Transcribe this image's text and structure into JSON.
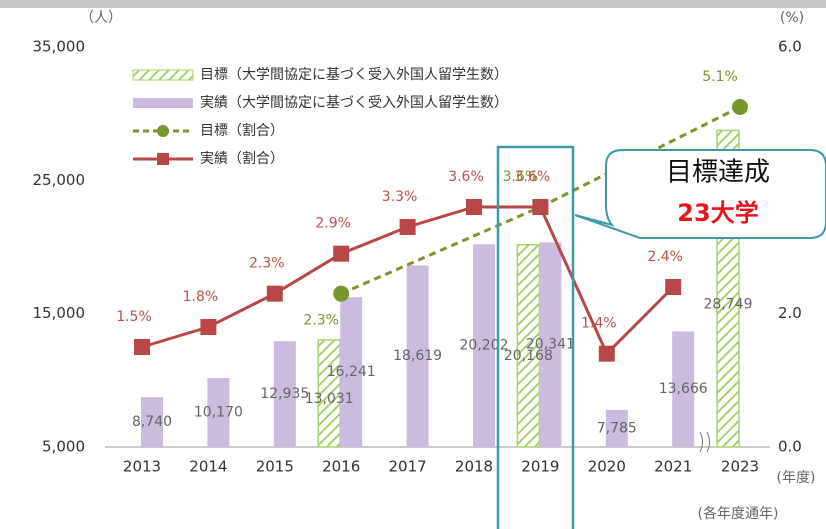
{
  "chart_data": {
    "type": "bar",
    "categories": [
      "2013",
      "2014",
      "2015",
      "2016",
      "2017",
      "2018",
      "2019",
      "2020",
      "2021",
      "2023"
    ],
    "series": [
      {
        "name": "目標（大学間協定に基づく受入外国人留学生数）",
        "type": "bar",
        "pattern": "hatch",
        "color": "#a9d06e",
        "values": [
          null,
          null,
          null,
          13031,
          null,
          null,
          20168,
          null,
          null,
          28749
        ],
        "value_labels": [
          null,
          null,
          null,
          "13,031",
          null,
          null,
          "20,168",
          null,
          null,
          "28,749"
        ]
      },
      {
        "name": "実績（大学間協定に基づく受入外国人留学生数）",
        "type": "bar",
        "color": "#cbbbdf",
        "values": [
          8740,
          10170,
          12935,
          16241,
          18619,
          20202,
          20341,
          7785,
          13666,
          null
        ],
        "value_labels": [
          "8,740",
          "10,170",
          "12,935",
          "16,241",
          "18,619",
          "20,202",
          "20,341",
          "7,785",
          "13,666",
          null
        ]
      },
      {
        "name": "目標（割合）",
        "type": "line",
        "dashed": true,
        "axis": "y2",
        "color": "#78962e",
        "values": [
          null,
          null,
          null,
          2.3,
          null,
          null,
          3.6,
          null,
          null,
          5.1
        ],
        "value_labels": [
          null,
          null,
          null,
          "2.3%",
          null,
          null,
          "3.6%",
          null,
          null,
          "5.1%"
        ]
      },
      {
        "name": "実績（割合）",
        "type": "line",
        "axis": "y2",
        "color": "#b94747",
        "values": [
          1.5,
          1.8,
          2.3,
          2.9,
          3.3,
          3.6,
          3.6,
          1.4,
          2.4,
          null
        ],
        "value_labels": [
          "1.5%",
          "1.8%",
          "2.3%",
          "2.9%",
          "3.3%",
          "3.6%",
          "3.6%",
          "1.4%",
          "2.4%",
          null
        ]
      }
    ],
    "ylim": [
      5000,
      35000
    ],
    "yticks": [
      {
        "value": 5000,
        "label": "5,000"
      },
      {
        "value": 15000,
        "label": "15,000"
      },
      {
        "value": 25000,
        "label": "25,000"
      },
      {
        "value": 35000,
        "label": "35,000"
      }
    ],
    "y2lim": [
      0,
      6
    ],
    "y2ticks": [
      {
        "value": 0,
        "label": "0.0"
      },
      {
        "value": 2,
        "label": "2.0"
      },
      {
        "value": 6,
        "label": "6.0"
      }
    ],
    "y_unit": "（人）",
    "y2_unit": "(%)",
    "x_unit": "(年度)",
    "note": "(各年度通年)",
    "annotation": {
      "title": "目標達成",
      "highlight": "23大学"
    }
  }
}
